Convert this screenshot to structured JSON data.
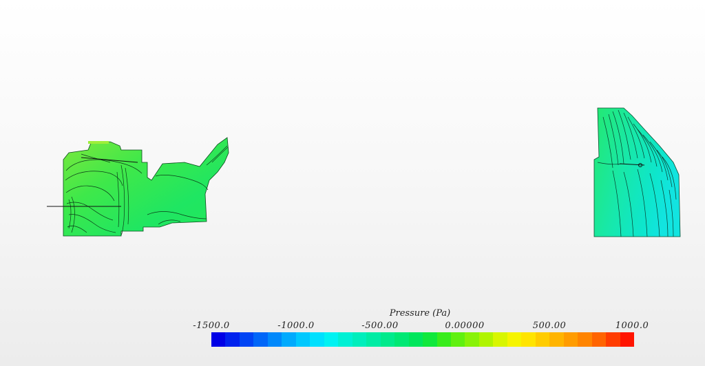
{
  "legend": {
    "title": "Pressure (Pa)",
    "ticks": [
      "-1500.0",
      "-1000.0",
      "-500.00",
      "0.00000",
      "500.00",
      "1000.0"
    ],
    "range": [
      -1500,
      1000
    ],
    "colors": [
      "#0000e6",
      "#0022ee",
      "#0044f4",
      "#0066f8",
      "#0088fb",
      "#00aafd",
      "#00c8fe",
      "#00e0fe",
      "#00f2f2",
      "#00f0d4",
      "#00eebc",
      "#00eca4",
      "#00ea8c",
      "#00e874",
      "#00e65c",
      "#10e83c",
      "#38ec1c",
      "#60f010",
      "#88f208",
      "#b0f400",
      "#d8f600",
      "#f6f400",
      "#ffe400",
      "#ffcc00",
      "#ffb400",
      "#ff9c00",
      "#ff8400",
      "#ff6400",
      "#ff3c00",
      "#ff1400"
    ]
  },
  "contour_colors": {
    "green": "#22e84a",
    "yellowgreen": "#8fe832",
    "cyan": "#12e8c8",
    "teal": "#00d6a8"
  }
}
